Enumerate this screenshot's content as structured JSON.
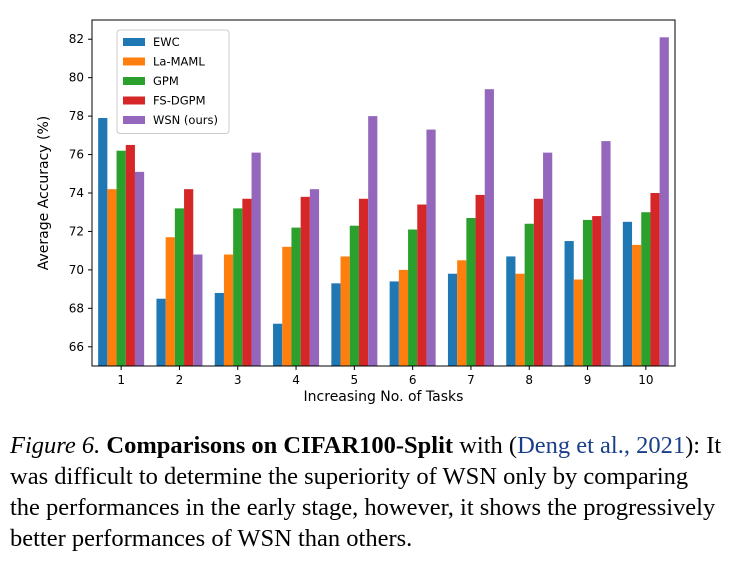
{
  "chart_data": {
    "type": "bar",
    "title": "",
    "xlabel": "Increasing No. of Tasks",
    "ylabel": "Average Accuracy (%)",
    "ylim": [
      65,
      83
    ],
    "yticks": [
      66,
      68,
      70,
      72,
      74,
      76,
      78,
      80,
      82
    ],
    "categories": [
      "1",
      "2",
      "3",
      "4",
      "5",
      "6",
      "7",
      "8",
      "9",
      "10"
    ],
    "legend_position": "top-left",
    "grid": false,
    "series": [
      {
        "name": "EWC",
        "color": "#1f77b4",
        "values": [
          77.9,
          68.5,
          68.8,
          67.2,
          69.3,
          69.4,
          69.8,
          70.7,
          71.5,
          72.5
        ]
      },
      {
        "name": "La-MAML",
        "color": "#ff7f0e",
        "values": [
          74.2,
          71.7,
          70.8,
          71.2,
          70.7,
          70.0,
          70.5,
          69.8,
          69.5,
          71.3
        ]
      },
      {
        "name": "GPM",
        "color": "#2ca02c",
        "values": [
          76.2,
          73.2,
          73.2,
          72.2,
          72.3,
          72.1,
          72.7,
          72.4,
          72.6,
          73.0
        ]
      },
      {
        "name": "FS-DGPM",
        "color": "#d62728",
        "values": [
          76.5,
          74.2,
          73.7,
          73.8,
          73.7,
          73.4,
          73.9,
          73.7,
          72.8,
          74.0
        ]
      },
      {
        "name": "WSN (ours)",
        "color": "#9467bd",
        "values": [
          75.1,
          70.8,
          76.1,
          74.2,
          78.0,
          77.3,
          79.4,
          76.1,
          76.7,
          82.1
        ]
      }
    ]
  },
  "caption": {
    "fig_num": "Figure 6.",
    "bold": "Comparisons on CIFAR100-Split",
    "pre_cite": " with (",
    "cite1": "Deng et al.,",
    "cite2": "2021",
    "rest": "): It was difficult to determine the superiority of WSN only by comparing the performances in the early stage, however, it shows the progressively better performances of WSN than others."
  }
}
